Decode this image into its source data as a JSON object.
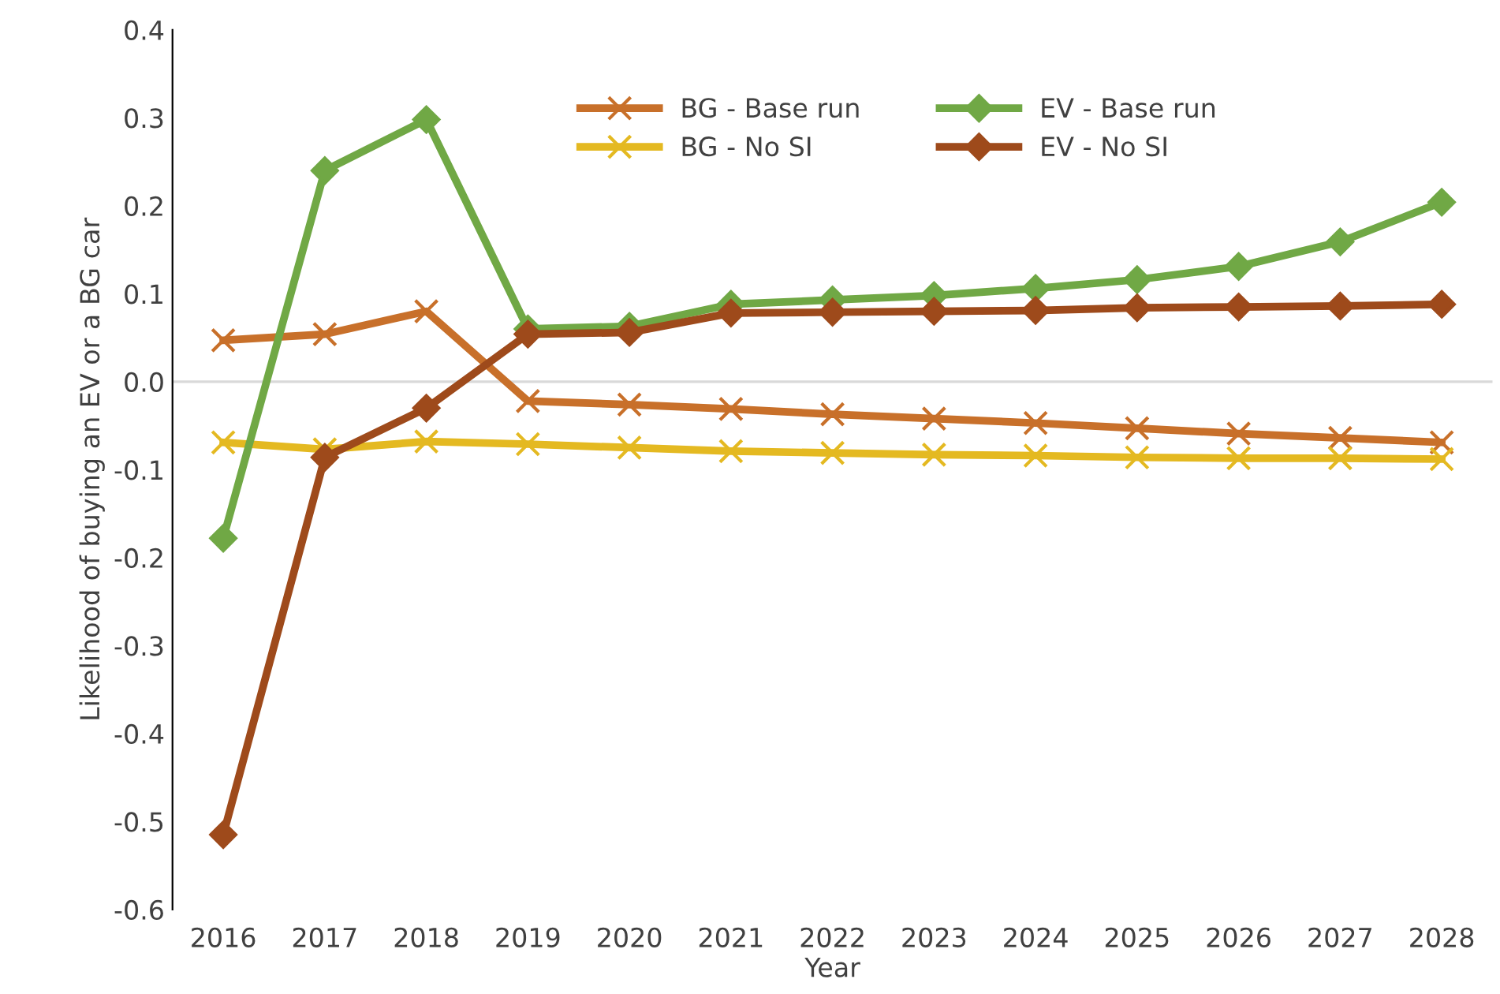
{
  "chart_data": {
    "type": "line",
    "xlabel": "Year",
    "ylabel": "Likelihood of buying an EV or a BG car",
    "categories": [
      "2016",
      "2017",
      "2018",
      "2019",
      "2020",
      "2021",
      "2022",
      "2023",
      "2024",
      "2025",
      "2026",
      "2027",
      "2028"
    ],
    "series": [
      {
        "name": "BG - Base run",
        "color": "#c8702a",
        "marker": "cross",
        "values": [
          0.047,
          0.054,
          0.08,
          -0.022,
          -0.026,
          -0.031,
          -0.037,
          -0.042,
          -0.047,
          -0.053,
          -0.059,
          -0.064,
          -0.069
        ]
      },
      {
        "name": "BG - No SI",
        "color": "#e4b921",
        "marker": "cross",
        "values": [
          -0.069,
          -0.077,
          -0.068,
          -0.071,
          -0.075,
          -0.079,
          -0.081,
          -0.083,
          -0.084,
          -0.086,
          -0.087,
          -0.087,
          -0.088
        ]
      },
      {
        "name": "EV - Base run",
        "color": "#70a845",
        "marker": "diamond",
        "values": [
          -0.178,
          0.24,
          0.298,
          0.06,
          0.063,
          0.088,
          0.093,
          0.098,
          0.106,
          0.116,
          0.131,
          0.159,
          0.204
        ]
      },
      {
        "name": "EV - No SI",
        "color": "#9e4a1b",
        "marker": "diamond",
        "values": [
          -0.515,
          -0.086,
          -0.03,
          0.054,
          0.056,
          0.078,
          0.079,
          0.08,
          0.081,
          0.084,
          0.085,
          0.086,
          0.088
        ]
      }
    ],
    "ylim": [
      -0.6,
      0.4
    ],
    "yticks": [
      {
        "value": -0.6,
        "label": "-0.6"
      },
      {
        "value": -0.5,
        "label": "-0.5"
      },
      {
        "value": -0.4,
        "label": "-0.4"
      },
      {
        "value": -0.3,
        "label": "-0.3"
      },
      {
        "value": -0.2,
        "label": "-0.2"
      },
      {
        "value": -0.1,
        "label": "-0.1"
      },
      {
        "value": 0,
        "label": "0.0"
      },
      {
        "value": 0.1,
        "label": "0.1"
      },
      {
        "value": 0.2,
        "label": "0.2"
      },
      {
        "value": 0.3,
        "label": "0.3"
      },
      {
        "value": 0.4,
        "label": "0.4"
      }
    ],
    "ref_lines": [
      {
        "axis": "y",
        "value": 0,
        "color": "#d9d9d9"
      }
    ],
    "legend": "top",
    "grid": false,
    "line_style": "solid"
  }
}
